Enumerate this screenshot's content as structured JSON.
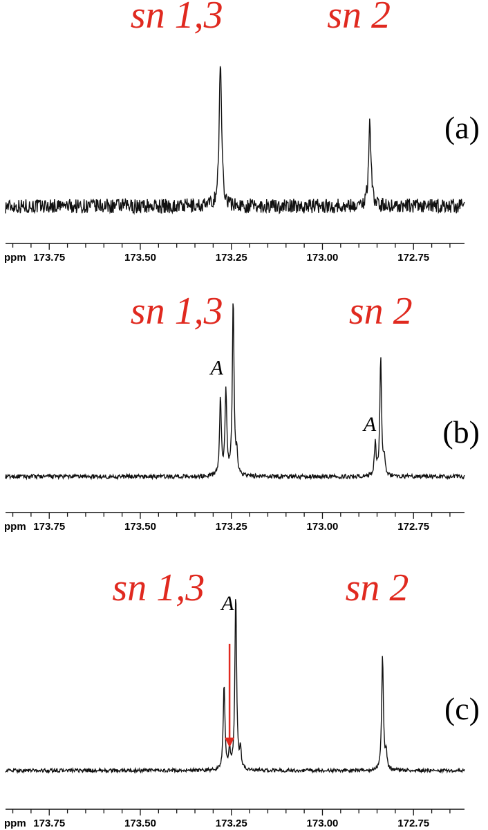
{
  "chart_data": [
    {
      "type": "line",
      "panel_label": "(a)",
      "xlabel": "ppm",
      "x_reversed": true,
      "xlim": [
        172.61,
        173.87
      ],
      "ylim": [
        0,
        1
      ],
      "x_ticks": [
        173.75,
        173.5,
        173.25,
        173.0,
        172.75
      ],
      "x_tick_labels": [
        "173.75",
        "173.50",
        "173.25",
        "173.00",
        "172.75"
      ],
      "label_color": "#e0291f",
      "peak_labels": [
        {
          "text": "sn 1,3",
          "x": 173.4
        },
        {
          "text": "sn 2",
          "x": 172.9
        }
      ],
      "series": [
        {
          "peaks": [
            {
              "x": 173.28,
              "height": 1.0,
              "width": 0.004
            },
            {
              "x": 172.87,
              "height": 0.58,
              "width": 0.004
            }
          ],
          "noise": 0.05
        }
      ],
      "annotations": []
    },
    {
      "type": "line",
      "panel_label": "(b)",
      "xlabel": "ppm",
      "x_reversed": true,
      "xlim": [
        172.61,
        173.87
      ],
      "ylim": [
        0,
        1
      ],
      "x_ticks": [
        173.75,
        173.5,
        173.25,
        173.0,
        172.75
      ],
      "x_tick_labels": [
        "173.75",
        "173.50",
        "173.25",
        "173.00",
        "172.75"
      ],
      "label_color": "#e0291f",
      "peak_labels": [
        {
          "text": "sn 1,3",
          "x": 173.4
        },
        {
          "text": "sn 2",
          "x": 172.84
        }
      ],
      "series": [
        {
          "peaks": [
            {
              "x": 173.28,
              "height": 0.44,
              "width": 0.0028
            },
            {
              "x": 173.265,
              "height": 0.49,
              "width": 0.0028
            },
            {
              "x": 173.245,
              "height": 1.0,
              "width": 0.0028
            },
            {
              "x": 173.235,
              "height": 0.12,
              "width": 0.0025
            },
            {
              "x": 172.855,
              "height": 0.18,
              "width": 0.0028
            },
            {
              "x": 172.84,
              "height": 0.67,
              "width": 0.0028
            },
            {
              "x": 172.83,
              "height": 0.1,
              "width": 0.0025
            }
          ],
          "noise": 0.012
        }
      ],
      "annotations": [
        {
          "text": "A",
          "x": 173.29,
          "y": 0.58
        },
        {
          "text": "A",
          "x": 172.87,
          "y": 0.26
        }
      ]
    },
    {
      "type": "line",
      "panel_label": "(c)",
      "xlabel": "ppm",
      "x_reversed": true,
      "xlim": [
        172.61,
        173.87
      ],
      "ylim": [
        0,
        1
      ],
      "x_ticks": [
        173.75,
        173.5,
        173.25,
        173.0,
        172.75
      ],
      "x_tick_labels": [
        "173.75",
        "173.50",
        "173.25",
        "173.00",
        "172.75"
      ],
      "label_color": "#e0291f",
      "peak_labels": [
        {
          "text": "sn 1,3",
          "x": 173.45
        },
        {
          "text": "sn 2",
          "x": 172.85
        }
      ],
      "series": [
        {
          "peaks": [
            {
              "x": 173.27,
              "height": 0.48,
              "width": 0.0028
            },
            {
              "x": 173.255,
              "height": 0.11,
              "width": 0.0025
            },
            {
              "x": 173.238,
              "height": 1.0,
              "width": 0.0028
            },
            {
              "x": 173.225,
              "height": 0.11,
              "width": 0.0025
            },
            {
              "x": 172.835,
              "height": 0.65,
              "width": 0.0028
            },
            {
              "x": 172.825,
              "height": 0.09,
              "width": 0.0025
            }
          ],
          "noise": 0.01
        }
      ],
      "annotations": [
        {
          "text": "A",
          "x": 173.26,
          "y": 0.9
        }
      ],
      "arrow": {
        "x": 173.255,
        "y_from": 0.71,
        "y_to": 0.13,
        "color": "#e0291f"
      }
    }
  ]
}
